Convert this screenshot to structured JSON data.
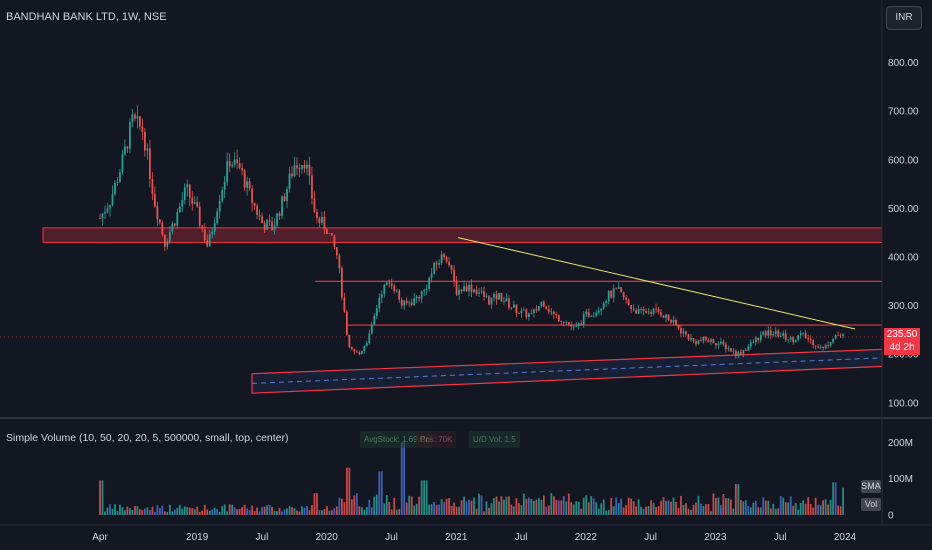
{
  "header": {
    "symbol_line": "BANDHAN BANK LTD, 1W, NSE"
  },
  "currency_button": "INR",
  "price_tag": {
    "price": "235.50",
    "countdown": "4d 2h"
  },
  "volume_indicator": {
    "label": "Simple Volume (10, 50, 20, 20, 5, 500000, small, top, center)",
    "stats": [
      "AvgStock: 1.69 Cr",
      "Pos: 70K",
      "U/D Vol: 1.5"
    ],
    "sma_badge": "SMA",
    "vol_badge": "Vol"
  },
  "colors": {
    "up": "#26a69a",
    "down": "#ef5350",
    "zone": "#f23645",
    "trend": "#e5e576",
    "volume_blue": "#4a6fd8"
  },
  "chart_data": [
    {
      "type": "candlestick",
      "title": "BANDHAN BANK LTD, 1W, NSE",
      "interval": "1W",
      "x_ticks": [
        "Apr",
        "2019",
        "Jul",
        "2020",
        "Jul",
        "2021",
        "Jul",
        "2022",
        "Jul",
        "2023",
        "Jul",
        "2024"
      ],
      "y_ticks": [
        100,
        200,
        300,
        400,
        500,
        600,
        700,
        800
      ],
      "ylim": [
        75,
        830
      ],
      "last_price": 235.5,
      "grid": false,
      "closes_monthly": [
        {
          "x": "2018-04",
          "close": 480
        },
        {
          "x": "2018-05",
          "close": 520
        },
        {
          "x": "2018-06",
          "close": 590
        },
        {
          "x": "2018-07",
          "close": 680
        },
        {
          "x": "2018-08",
          "close": 660
        },
        {
          "x": "2018-09",
          "close": 520
        },
        {
          "x": "2018-10",
          "close": 430
        },
        {
          "x": "2018-11",
          "close": 480
        },
        {
          "x": "2018-12",
          "close": 540
        },
        {
          "x": "2019-01",
          "close": 490
        },
        {
          "x": "2019-02",
          "close": 420
        },
        {
          "x": "2019-03",
          "close": 520
        },
        {
          "x": "2019-04",
          "close": 600
        },
        {
          "x": "2019-05",
          "close": 580
        },
        {
          "x": "2019-06",
          "close": 520
        },
        {
          "x": "2019-07",
          "close": 470
        },
        {
          "x": "2019-08",
          "close": 460
        },
        {
          "x": "2019-09",
          "close": 520
        },
        {
          "x": "2019-10",
          "close": 590
        },
        {
          "x": "2019-11",
          "close": 600
        },
        {
          "x": "2019-12",
          "close": 480
        },
        {
          "x": "2020-01",
          "close": 460
        },
        {
          "x": "2020-02",
          "close": 400
        },
        {
          "x": "2020-03",
          "close": 210
        },
        {
          "x": "2020-04",
          "close": 200
        },
        {
          "x": "2020-05",
          "close": 240
        },
        {
          "x": "2020-06",
          "close": 330
        },
        {
          "x": "2020-07",
          "close": 350
        },
        {
          "x": "2020-08",
          "close": 300
        },
        {
          "x": "2020-09",
          "close": 310
        },
        {
          "x": "2020-10",
          "close": 330
        },
        {
          "x": "2020-11",
          "close": 380
        },
        {
          "x": "2020-12",
          "close": 410
        },
        {
          "x": "2021-01",
          "close": 330
        },
        {
          "x": "2021-02",
          "close": 340
        },
        {
          "x": "2021-03",
          "close": 330
        },
        {
          "x": "2021-04",
          "close": 310
        },
        {
          "x": "2021-05",
          "close": 320
        },
        {
          "x": "2021-06",
          "close": 300
        },
        {
          "x": "2021-07",
          "close": 285
        },
        {
          "x": "2021-08",
          "close": 280
        },
        {
          "x": "2021-09",
          "close": 310
        },
        {
          "x": "2021-10",
          "close": 280
        },
        {
          "x": "2021-11",
          "close": 270
        },
        {
          "x": "2021-12",
          "close": 250
        },
        {
          "x": "2022-01",
          "close": 280
        },
        {
          "x": "2022-02",
          "close": 290
        },
        {
          "x": "2022-03",
          "close": 320
        },
        {
          "x": "2022-04",
          "close": 330
        },
        {
          "x": "2022-05",
          "close": 300
        },
        {
          "x": "2022-06",
          "close": 285
        },
        {
          "x": "2022-07",
          "close": 290
        },
        {
          "x": "2022-08",
          "close": 285
        },
        {
          "x": "2022-09",
          "close": 265
        },
        {
          "x": "2022-10",
          "close": 245
        },
        {
          "x": "2022-11",
          "close": 225
        },
        {
          "x": "2022-12",
          "close": 230
        },
        {
          "x": "2023-01",
          "close": 225
        },
        {
          "x": "2023-02",
          "close": 215
        },
        {
          "x": "2023-03",
          "close": 200
        },
        {
          "x": "2023-04",
          "close": 215
        },
        {
          "x": "2023-05",
          "close": 235
        },
        {
          "x": "2023-06",
          "close": 245
        },
        {
          "x": "2023-07",
          "close": 240
        },
        {
          "x": "2023-08",
          "close": 230
        },
        {
          "x": "2023-09",
          "close": 240
        },
        {
          "x": "2023-10",
          "close": 225
        },
        {
          "x": "2023-11",
          "close": 210
        },
        {
          "x": "2023-12",
          "close": 240
        },
        {
          "x": "2024-01",
          "close": 235.5
        }
      ],
      "annotations": {
        "resistance_zone": [
          430,
          460
        ],
        "horizontal_lines": [
          350,
          260
        ],
        "descending_trendline": [
          {
            "x": "2020-09",
            "y": 440
          },
          {
            "x": "2024-01",
            "y": 252
          }
        ],
        "rising_channel_upper": [
          {
            "x": "2020-01",
            "y": 160
          },
          {
            "x": "2024-02",
            "y": 210
          }
        ],
        "rising_channel_lower": [
          {
            "x": "2020-01",
            "y": 120
          },
          {
            "x": "2024-02",
            "y": 175
          }
        ]
      }
    },
    {
      "type": "bar",
      "title": "Simple Volume (10, 50, 20, 20, 5, 500000, small, top, center)",
      "y_ticks": [
        "0",
        "100M",
        "200M"
      ],
      "ylim": [
        0,
        220
      ],
      "unit": "M shares",
      "volume_spikes": [
        {
          "x": "2018-04",
          "value": 95
        },
        {
          "x": "2019-12",
          "value": 60
        },
        {
          "x": "2020-03",
          "value": 130
        },
        {
          "x": "2020-06",
          "value": 120
        },
        {
          "x": "2020-08",
          "value": 200
        },
        {
          "x": "2020-10",
          "value": 95
        },
        {
          "x": "2023-03",
          "value": 85
        },
        {
          "x": "2023-12",
          "value": 90
        },
        {
          "x": "2024-01",
          "value": 75
        }
      ]
    }
  ]
}
